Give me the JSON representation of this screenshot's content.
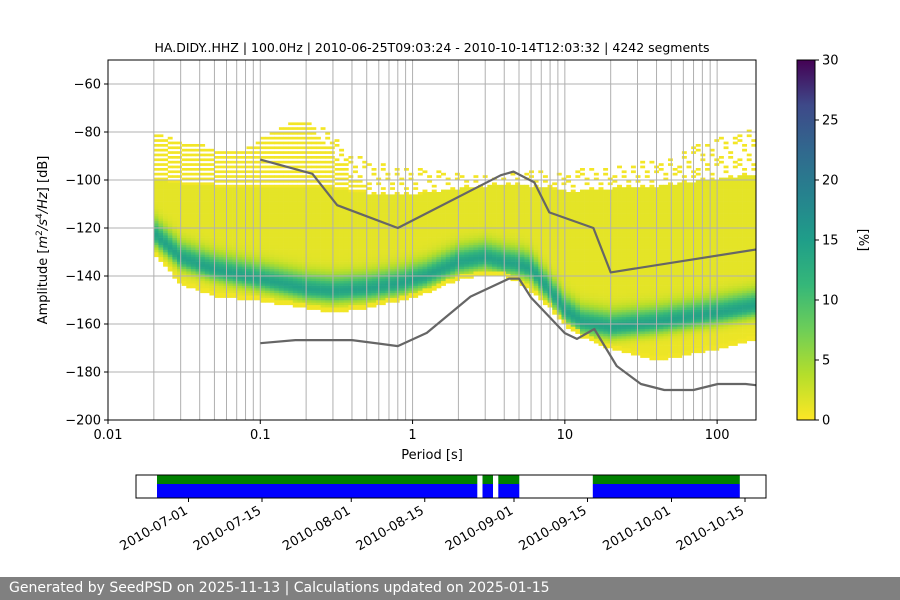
{
  "chart_data": [
    {
      "type": "heatmap",
      "title": "HA.DIDY..HHZ | 100.0Hz | 2010-06-25T09:03:24 - 2010-10-14T12:03:32 | 4242 segments",
      "xlabel": "Period [s]",
      "ylabel_parts": [
        "Amplitude [",
        "m",
        "2",
        "/",
        "s",
        "4",
        "/",
        "Hz",
        "] [dB]"
      ],
      "x_scale": "log",
      "xlim": [
        0.01,
        180
      ],
      "ylim": [
        -200,
        -50
      ],
      "x_ticks": [
        0.01,
        0.1,
        1,
        10,
        100
      ],
      "x_tick_labels": [
        "0.01",
        "0.1",
        "1",
        "10",
        "100"
      ],
      "y_ticks": [
        -200,
        -180,
        -160,
        -140,
        -120,
        -100,
        -80,
        -60
      ],
      "y_tick_labels": [
        "−200",
        "−180",
        "−160",
        "−140",
        "−120",
        "−100",
        "−80",
        "−60"
      ],
      "grid_periods": [
        0.02,
        0.03,
        0.04,
        0.05,
        0.06,
        0.07,
        0.08,
        0.09,
        0.1,
        0.2,
        0.3,
        0.4,
        0.5,
        0.6,
        0.7,
        0.8,
        0.9,
        1,
        2,
        3,
        4,
        5,
        6,
        7,
        8,
        9,
        10,
        20,
        30,
        40,
        50,
        60,
        70,
        80,
        90,
        100
      ],
      "grid_amplitudes": [
        -180,
        -160,
        -140,
        -120,
        -100,
        -80,
        -60
      ],
      "colormap": "viridis_r",
      "colorbar": {
        "label": "[%]",
        "range": [
          0,
          30
        ],
        "ticks": [
          0,
          5,
          10,
          15,
          20,
          25,
          30
        ]
      },
      "psd_mode": {
        "period": [
          0.02,
          0.03,
          0.05,
          0.1,
          0.2,
          0.3,
          0.5,
          0.8,
          1.2,
          2,
          3,
          4,
          5,
          6,
          8,
          10,
          13,
          20,
          40,
          100,
          180
        ],
        "amplitude": [
          -123,
          -133,
          -138,
          -142,
          -146,
          -147,
          -146,
          -144,
          -141,
          -135,
          -133,
          -135,
          -136,
          -138,
          -147,
          -155,
          -160,
          -162,
          -160,
          -156,
          -153
        ]
      },
      "psd_low_percentile": {
        "period": [
          0.02,
          0.03,
          0.05,
          0.1,
          0.2,
          0.3,
          0.5,
          0.8,
          1.2,
          2,
          3,
          4,
          5,
          6,
          8,
          10,
          13,
          20,
          40,
          100,
          180
        ],
        "amplitude": [
          -130,
          -143,
          -148,
          -150,
          -153,
          -155,
          -153,
          -150,
          -147,
          -141,
          -139,
          -140,
          -142,
          -146,
          -153,
          -160,
          -165,
          -170,
          -175,
          -170,
          -166
        ]
      },
      "psd_high_percentile": {
        "period": [
          0.02,
          0.03,
          0.05,
          0.1,
          0.2,
          0.3,
          0.5,
          0.8,
          1.2,
          2,
          3,
          4,
          5,
          6,
          8,
          10,
          13,
          20,
          40,
          100,
          180
        ],
        "amplitude": [
          -100,
          -102,
          -103,
          -103,
          -103,
          -104,
          -106,
          -107,
          -106,
          -104,
          -103,
          -102,
          -102,
          -103,
          -104,
          -105,
          -105,
          -104,
          -103,
          -100,
          -98
        ]
      },
      "psd_sparse_outliers": {
        "period": [
          0.02,
          0.03,
          0.05,
          0.08,
          0.1,
          0.15,
          0.2,
          0.25,
          0.3,
          0.35,
          0.5,
          0.8,
          1.5,
          3,
          6,
          10,
          20,
          40,
          70,
          100,
          150,
          180
        ],
        "amplitude": [
          -81,
          -84,
          -87,
          -88,
          -83,
          -77,
          -75,
          -78,
          -82,
          -87,
          -92,
          -95,
          -96,
          -99,
          -97,
          -96,
          -94,
          -92,
          -86,
          -83,
          -80,
          -78
        ]
      },
      "nhnm": {
        "period": [
          0.1,
          0.22,
          0.32,
          0.8,
          3.8,
          4.6,
          6.3,
          7.9,
          15.4,
          20,
          354.8
        ],
        "amplitude": [
          -91.5,
          -97.4,
          -110.5,
          -120,
          -98,
          -96.5,
          -101,
          -113.5,
          -120,
          -138.5,
          -126
        ]
      },
      "nlnm": {
        "period": [
          0.1,
          0.17,
          0.4,
          0.8,
          1.24,
          2.4,
          4.3,
          5,
          6,
          10,
          12,
          15.6,
          21.9,
          31.6,
          45,
          70,
          101,
          154,
          180
        ],
        "amplitude": [
          -168,
          -166.7,
          -166.7,
          -169.2,
          -163.7,
          -148.6,
          -141.1,
          -141.1,
          -149,
          -163.8,
          -166.2,
          -162.1,
          -177.5,
          -185,
          -187.5,
          -187.5,
          -185,
          -185,
          -185.5
        ]
      }
    },
    {
      "type": "timeline",
      "x_tick_labels": [
        "2010-07-01",
        "2010-07-15",
        "2010-08-01",
        "2010-08-15",
        "2010-09-01",
        "2010-09-15",
        "2010-10-01",
        "2010-10-15"
      ],
      "x_tick_dates": [
        "2010-07-01",
        "2010-07-15",
        "2010-08-01",
        "2010-08-15",
        "2010-09-01",
        "2010-09-15",
        "2010-10-01",
        "2010-10-15"
      ],
      "xlim": [
        "2010-06-21",
        "2010-10-19"
      ],
      "data_available": [
        [
          "2010-06-25",
          "2010-08-25"
        ],
        [
          "2010-08-26",
          "2010-08-28"
        ],
        [
          "2010-08-29",
          "2010-09-02"
        ],
        [
          "2010-09-16",
          "2010-10-14"
        ]
      ],
      "psd_available": [
        [
          "2010-06-25",
          "2010-08-25"
        ],
        [
          "2010-08-26",
          "2010-08-28"
        ],
        [
          "2010-08-29",
          "2010-09-02"
        ],
        [
          "2010-09-16",
          "2010-10-14"
        ]
      ],
      "colors": {
        "data": "#008000",
        "psd": "#0000ff"
      }
    }
  ],
  "footer": {
    "text": "Generated by SeedPSD on 2025-11-13 | Calculations updated on 2025-01-15"
  }
}
